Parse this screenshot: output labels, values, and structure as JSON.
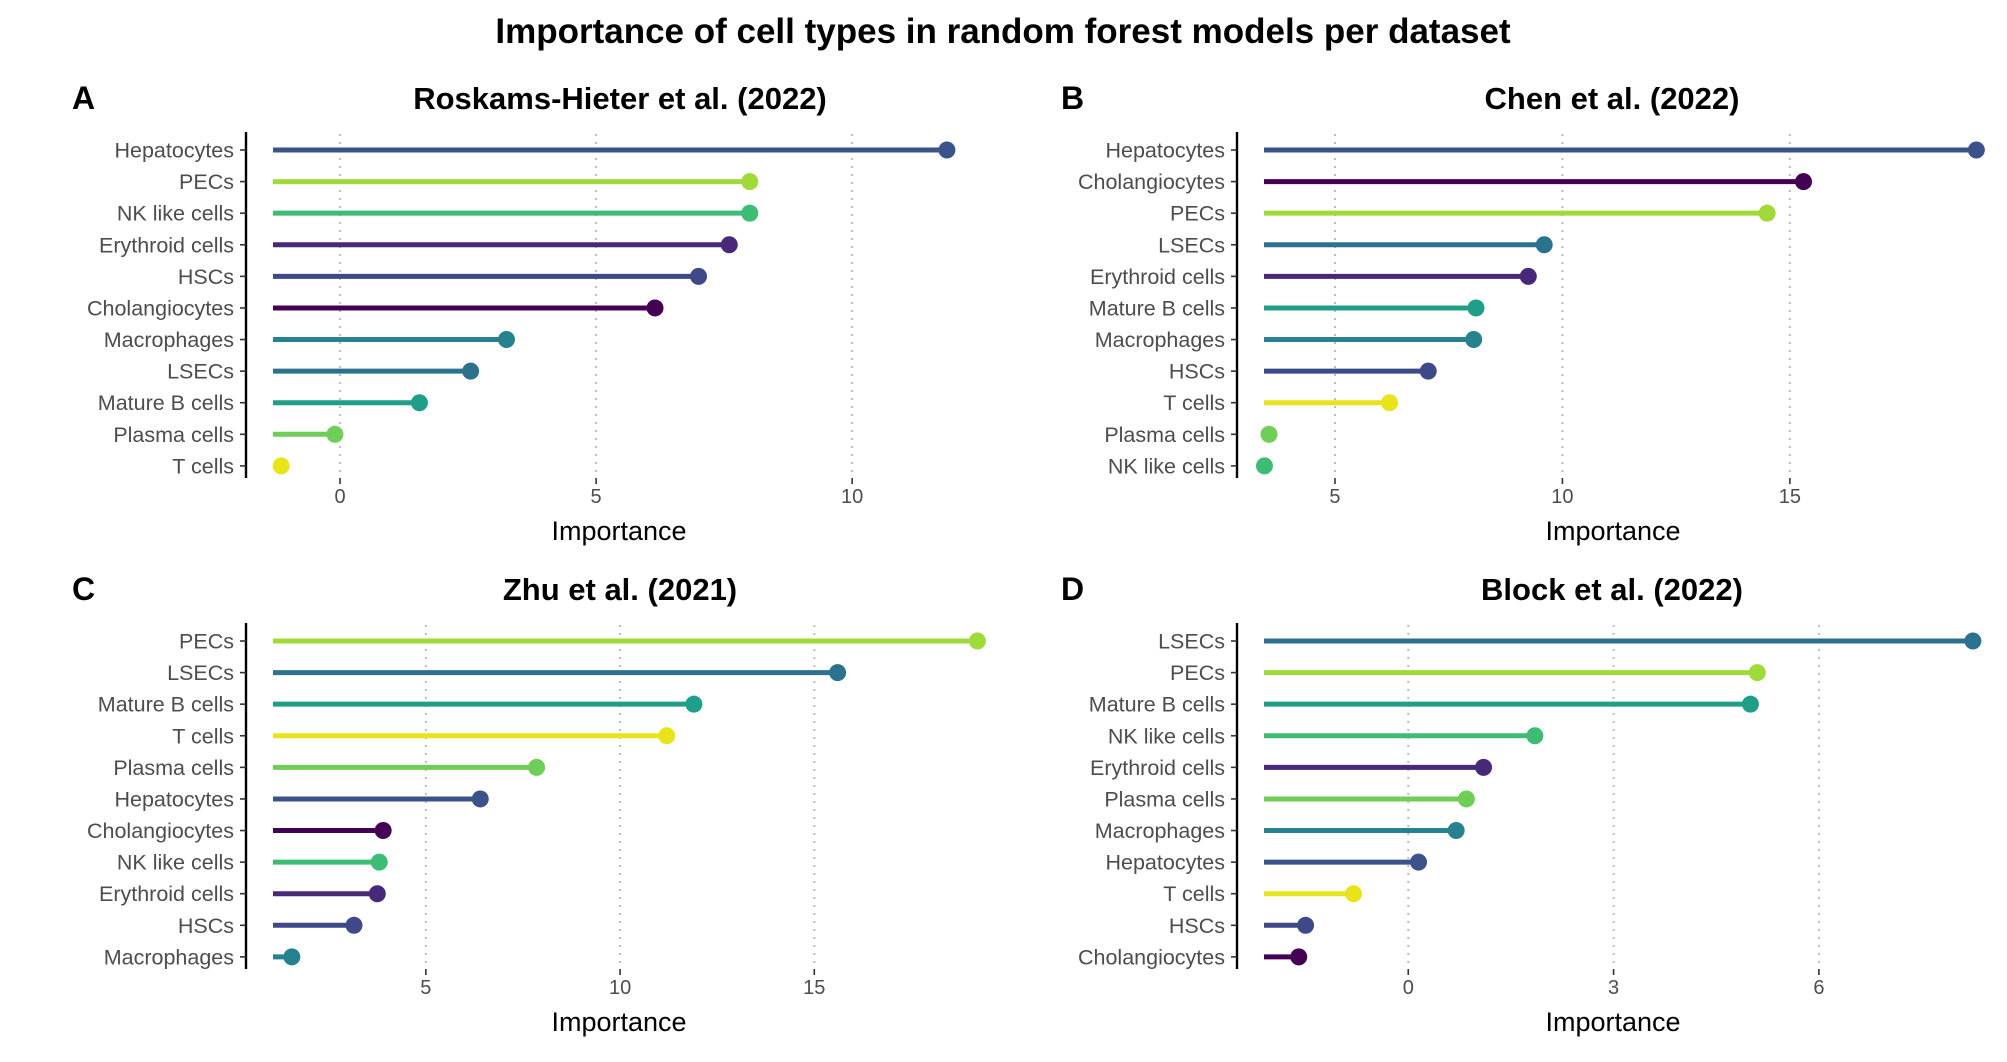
{
  "figure": {
    "title": "Importance of cell types in random forest models per dataset"
  },
  "chart_data": [
    {
      "type": "lollipop",
      "tag": "A",
      "title": "Roskams-Hieter et al. (2022)",
      "xlabel": "Importance",
      "xlim": [
        -1.7,
        12.75
      ],
      "xticks": [
        0,
        5,
        10
      ],
      "points": [
        {
          "label": "Hepatocytes",
          "value": 11.85,
          "color": "#3B528B"
        },
        {
          "label": "PECs",
          "value": 8.0,
          "color": "#A0DA39"
        },
        {
          "label": "NK like cells",
          "value": 8.0,
          "color": "#3CBC75"
        },
        {
          "label": "Erythroid cells",
          "value": 7.6,
          "color": "#482878"
        },
        {
          "label": "HSCs",
          "value": 7.0,
          "color": "#3E4989"
        },
        {
          "label": "Cholangiocytes",
          "value": 6.15,
          "color": "#440154"
        },
        {
          "label": "Macrophages",
          "value": 3.25,
          "color": "#26828E"
        },
        {
          "label": "LSECs",
          "value": 2.55,
          "color": "#2C728E"
        },
        {
          "label": "Mature B cells",
          "value": 1.55,
          "color": "#1F9E89"
        },
        {
          "label": "Plasma cells",
          "value": -0.1,
          "color": "#6ECE58"
        },
        {
          "label": "T cells",
          "value": -1.15,
          "color": "#E8E419"
        }
      ]
    },
    {
      "type": "lollipop",
      "tag": "B",
      "title": "Chen et al. (2022)",
      "xlabel": "Importance",
      "xlim": [
        3.0,
        19.4
      ],
      "xticks": [
        5,
        10,
        15
      ],
      "points": [
        {
          "label": "Hepatocytes",
          "value": 19.1,
          "color": "#3B528B"
        },
        {
          "label": "Cholangiocytes",
          "value": 15.3,
          "color": "#440154"
        },
        {
          "label": "PECs",
          "value": 14.5,
          "color": "#A0DA39"
        },
        {
          "label": "LSECs",
          "value": 9.6,
          "color": "#2C728E"
        },
        {
          "label": "Erythroid cells",
          "value": 9.25,
          "color": "#482878"
        },
        {
          "label": "Mature B cells",
          "value": 8.1,
          "color": "#1F9E89"
        },
        {
          "label": "Macrophages",
          "value": 8.05,
          "color": "#26828E"
        },
        {
          "label": "HSCs",
          "value": 7.05,
          "color": "#3E4989"
        },
        {
          "label": "T cells",
          "value": 6.2,
          "color": "#E8E419"
        },
        {
          "label": "Plasma cells",
          "value": 3.55,
          "color": "#6ECE58"
        },
        {
          "label": "NK like cells",
          "value": 3.45,
          "color": "#3CBC75"
        }
      ]
    },
    {
      "type": "lollipop",
      "tag": "C",
      "title": "Zhu et al. (2021)",
      "xlabel": "Importance",
      "xlim": [
        0.55,
        19.6
      ],
      "xticks": [
        5,
        10,
        15
      ],
      "points": [
        {
          "label": "PECs",
          "value": 19.2,
          "color": "#A0DA39"
        },
        {
          "label": "LSECs",
          "value": 15.6,
          "color": "#2C728E"
        },
        {
          "label": "Mature B cells",
          "value": 11.9,
          "color": "#1F9E89"
        },
        {
          "label": "T cells",
          "value": 11.2,
          "color": "#E8E419"
        },
        {
          "label": "Plasma cells",
          "value": 7.85,
          "color": "#6ECE58"
        },
        {
          "label": "Hepatocytes",
          "value": 6.4,
          "color": "#3B528B"
        },
        {
          "label": "Cholangiocytes",
          "value": 3.9,
          "color": "#440154"
        },
        {
          "label": "NK like cells",
          "value": 3.8,
          "color": "#3CBC75"
        },
        {
          "label": "Erythroid cells",
          "value": 3.75,
          "color": "#482878"
        },
        {
          "label": "HSCs",
          "value": 3.15,
          "color": "#3E4989"
        },
        {
          "label": "Macrophages",
          "value": 1.55,
          "color": "#26828E"
        }
      ]
    },
    {
      "type": "lollipop",
      "tag": "D",
      "title": "Block et al. (2022)",
      "xlabel": "Importance",
      "xlim": [
        -2.4,
        8.5
      ],
      "xticks": [
        0,
        3,
        6
      ],
      "points": [
        {
          "label": "LSECs",
          "value": 8.25,
          "color": "#2C728E"
        },
        {
          "label": "PECs",
          "value": 5.1,
          "color": "#A0DA39"
        },
        {
          "label": "Mature B cells",
          "value": 5.0,
          "color": "#1F9E89"
        },
        {
          "label": "NK like cells",
          "value": 1.85,
          "color": "#3CBC75"
        },
        {
          "label": "Erythroid cells",
          "value": 1.1,
          "color": "#482878"
        },
        {
          "label": "Plasma cells",
          "value": 0.85,
          "color": "#6ECE58"
        },
        {
          "label": "Macrophages",
          "value": 0.7,
          "color": "#26828E"
        },
        {
          "label": "Hepatocytes",
          "value": 0.15,
          "color": "#3B528B"
        },
        {
          "label": "T cells",
          "value": -0.8,
          "color": "#E8E419"
        },
        {
          "label": "HSCs",
          "value": -1.5,
          "color": "#3E4989"
        },
        {
          "label": "Cholangiocytes",
          "value": -1.6,
          "color": "#440154"
        }
      ]
    }
  ]
}
